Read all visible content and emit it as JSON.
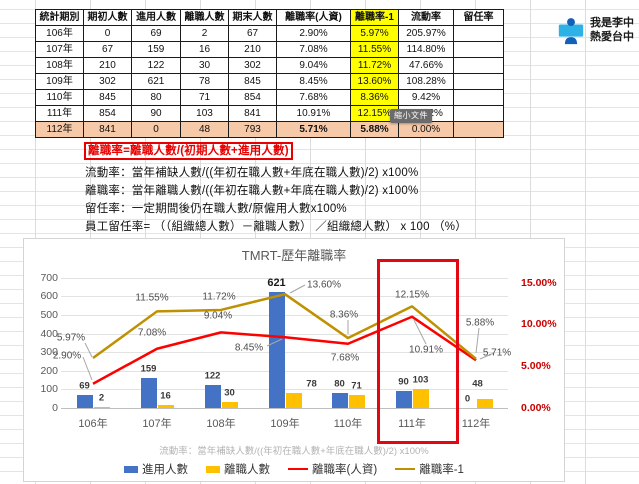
{
  "profile_badge": {
    "line1": "我是李中",
    "line2": "熱愛台中"
  },
  "tooltip": {
    "label": "縮小文件"
  },
  "table": {
    "headers": [
      "統計期別",
      "期初人數",
      "進用人數",
      "離職人數",
      "期末人數",
      "離職率(人資)",
      "離職率-1",
      "流動率",
      "留任率"
    ],
    "rows": [
      [
        "106年",
        "0",
        "69",
        "2",
        "67",
        "2.90%",
        "5.97%",
        "205.97%",
        ""
      ],
      [
        "107年",
        "67",
        "159",
        "16",
        "210",
        "7.08%",
        "11.55%",
        "114.80%",
        ""
      ],
      [
        "108年",
        "210",
        "122",
        "30",
        "302",
        "9.04%",
        "11.72%",
        "47.66%",
        ""
      ],
      [
        "109年",
        "302",
        "621",
        "78",
        "845",
        "8.45%",
        "13.60%",
        "108.28%",
        ""
      ],
      [
        "110年",
        "845",
        "80",
        "71",
        "854",
        "7.68%",
        "8.36%",
        "9.42%",
        ""
      ],
      [
        "111年",
        "854",
        "90",
        "103",
        "841",
        "10.91%",
        "12.15%",
        "10.62%",
        ""
      ],
      [
        "112年",
        "841",
        "0",
        "48",
        "793",
        "5.71%",
        "5.88%",
        "0.00%",
        ""
      ]
    ],
    "colors": {
      "highlight_row_bg": "#f6c9a8",
      "rate_col_bg": "#ffff00",
      "red_text": "#e00000"
    }
  },
  "notes": {
    "boxed_formula": "離職率=離職人數/(初期人數+進用人數)",
    "lines": [
      "流動率：當年補缺人數/((年初在職人數+年底在職人數)/2) x100%",
      "離職率：當年離職人數/((年初在職人數+年底在職人數)/2) x100%",
      "留任率：一定期間後仍在職人數/原僱用人數x100%",
      "員工留任率= （（組織總人數）－離職人數） ／組織總人數） x 100 （%）"
    ]
  },
  "chart_data": {
    "type": "combo (bar+line)",
    "title": "TMRT-歷年離職率",
    "categories": [
      "106年",
      "107年",
      "108年",
      "109年",
      "110年",
      "111年",
      "112年"
    ],
    "series": [
      {
        "name": "進用人數",
        "kind": "bar",
        "axis": "left",
        "color": "#4472c4",
        "values": [
          69,
          159,
          122,
          621,
          80,
          90,
          0
        ]
      },
      {
        "name": "離職人數",
        "kind": "bar",
        "axis": "left",
        "color": "#ffc000",
        "values": [
          2,
          16,
          30,
          78,
          71,
          103,
          48
        ]
      },
      {
        "name": "離職率(人資)",
        "kind": "line",
        "axis": "right",
        "color": "#fe0000",
        "values": [
          2.9,
          7.08,
          9.04,
          8.45,
          7.68,
          10.91,
          5.71
        ],
        "labels": [
          "2.90%",
          "7.08%",
          "9.04%",
          "8.45%",
          "7.68%",
          "10.91%",
          "5.71%"
        ]
      },
      {
        "name": "離職率-1",
        "kind": "line",
        "axis": "right",
        "color": "#bf9000",
        "values": [
          5.97,
          11.55,
          11.72,
          13.6,
          8.36,
          12.15,
          5.88
        ],
        "labels": [
          "5.97%",
          "11.55%",
          "11.72%",
          "13.60%",
          "8.36%",
          "12.15%",
          "5.88%"
        ]
      }
    ],
    "left_axis": {
      "min": 0,
      "max": 700,
      "tick_step": 100,
      "ticks": [
        "0",
        "100",
        "200",
        "300",
        "400",
        "500",
        "600",
        "700"
      ]
    },
    "right_axis": {
      "min": 0,
      "max": 15,
      "ticks": [
        "0.00%",
        "5.00%",
        "10.00%",
        "15.00%"
      ]
    },
    "grid": true,
    "legend_position": "bottom",
    "highlight_category": "111年",
    "footnote": "流動率：當年補缺人數/((年初在職人數+年底在職人數)/2) x100%"
  }
}
